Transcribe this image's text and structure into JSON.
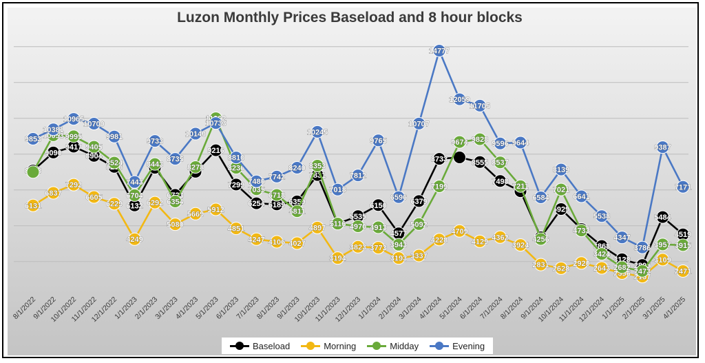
{
  "chart_data": {
    "type": "line",
    "title": "Luzon Monthly Prices Baseload and 8 hour blocks",
    "xlabel": "",
    "ylabel": "",
    "ylim": [
      1000,
      16000
    ],
    "grid": true,
    "legend": "bottom",
    "categories": [
      "8/1/2022",
      "9/1/2022",
      "10/1/2022",
      "11/1/2022",
      "12/1/2022",
      "1/1/2023",
      "2/1/2023",
      "3/1/2023",
      "4/1/2023",
      "5/1/2023",
      "6/1/2023",
      "7/1/2023",
      "8/1/2023",
      "9/1/2023",
      "10/1/2023",
      "11/1/2023",
      "12/1/2023",
      "1/1/2024",
      "2/1/2024",
      "3/1/2024",
      "4/1/2024",
      "5/1/2024",
      "6/1/2024",
      "7/1/2024",
      "8/1/2024",
      "9/1/2024",
      "10/1/2024",
      "11/1/2024",
      "12/1/2024",
      "1/1/2025",
      "2/1/2025",
      "3/1/2025",
      "4/1/2025"
    ],
    "series": [
      {
        "name": "Baseload",
        "color": "#000000",
        "values": [
          8078,
          9090,
          9417,
          8904,
          8288,
          6132,
          8233,
          6723,
          8014,
          9216,
          7299,
          6254,
          6189,
          6359,
          7831,
          5116,
          5535,
          6150,
          4577,
          6379,
          8733,
          8814,
          8555,
          7498,
          6926,
          4356,
          5929,
          4813,
          3868,
          3128,
          2805,
          5484,
          4519
        ],
        "labels": [
          "8078",
          "9090",
          "9417",
          "8904",
          "8288",
          "6132",
          "",
          "6723",
          "",
          "9216",
          "7299",
          "6254",
          "6189",
          "6359",
          "7831",
          "",
          "5535",
          "6150",
          "4577",
          "6379",
          "8733",
          "",
          "8555",
          "7498",
          "",
          "",
          "5929",
          "4813",
          "3868",
          "3128",
          "2805",
          "5484",
          "4519"
        ]
      },
      {
        "name": "Morning",
        "color": "#f2b814",
        "values": [
          6131,
          6837,
          7292,
          6605,
          6229,
          4249,
          6292,
          5080,
          5669,
          5912,
          4851,
          4247,
          4106,
          4027,
          4897,
          3194,
          3823,
          3773,
          3193,
          3337,
          4228,
          4709,
          4129,
          4362,
          3924,
          2831,
          2628,
          2920,
          2643,
          2356,
          2157,
          3109,
          2471
        ],
        "labels": [
          "6131",
          "6837",
          "7292",
          "6605",
          "6229",
          "4249",
          "6292",
          "5080",
          "5669",
          "5912",
          "4851",
          "4247",
          "4106",
          "4027",
          "4897",
          "3194",
          "3823",
          "3773",
          "3193",
          "3337",
          "4228",
          "4709",
          "4129",
          "4362",
          "3924",
          "2831",
          "2628",
          "2920",
          "2643",
          "2356",
          "2157",
          "3109",
          "2471"
        ]
      },
      {
        "name": "Midday",
        "color": "#6aaa3a",
        "values": [
          8000,
          10053,
          9995,
          9405,
          8524,
          6704,
          8443,
          6354,
          8278,
          11002,
          8236,
          7035,
          6718,
          5811,
          8353,
          5116,
          4970,
          4913,
          3943,
          5092,
          7199,
          9674,
          9828,
          8537,
          7211,
          4256,
          7021,
          4733,
          3424,
          2682,
          2473,
          3957,
          3915
        ],
        "labels": [
          "",
          "10053",
          "9995",
          "9405",
          "8524",
          "6704",
          "8443",
          "6354",
          "8278",
          "11002",
          "8236",
          "7035",
          "6718",
          "5811",
          "8353",
          "5116",
          "4970",
          "4913",
          "3943",
          "5092",
          "7199",
          "9674",
          "9828",
          "8537",
          "7211",
          "4256",
          "7021",
          "4733",
          "3424",
          "2682",
          "2473",
          "3957",
          "3915"
        ]
      },
      {
        "name": "Evening",
        "color": "#4a78c4",
        "values": [
          9853,
          10381,
          10965,
          10700,
          9981,
          7443,
          9733,
          8735,
          10140,
          10733,
          8810,
          7480,
          7742,
          8240,
          10245,
          7018,
          7812,
          9765,
          6596,
          10707,
          14777,
          12059,
          11705,
          9596,
          9644,
          6584,
          8139,
          6641,
          5538,
          4347,
          3786,
          9387,
          7171
        ],
        "labels": [
          "9853",
          "10381",
          "10965",
          "10700",
          "9981",
          "7443",
          "9733",
          "8735",
          "10140",
          "10733",
          "8810",
          "7480",
          "7742",
          "8240",
          "10245",
          "7018",
          "7812",
          "9765",
          "6596",
          "10707",
          "14777",
          "12059",
          "11705",
          "9596",
          "9644",
          "6584",
          "8139",
          "6641",
          "5538",
          "4347",
          "3786",
          "9387",
          "7171"
        ]
      }
    ]
  }
}
